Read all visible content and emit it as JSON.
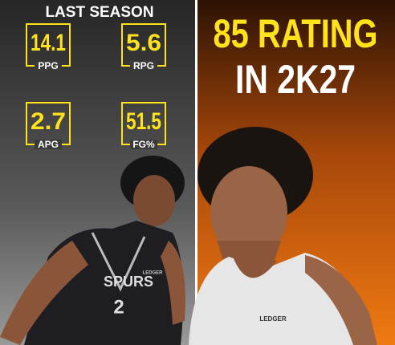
{
  "left_panel": {
    "title": "LAST SEASON",
    "stats": [
      {
        "value": "14.1",
        "label": "PPG"
      },
      {
        "value": "5.6",
        "label": "RPG"
      },
      {
        "value": "2.7",
        "label": "APG"
      },
      {
        "value": "51.5",
        "label": "FG%"
      }
    ],
    "jersey": {
      "team": "SPURS",
      "number": "2",
      "sponsor": "LEDGER"
    }
  },
  "right_panel": {
    "headline": [
      "85 RATING",
      "IN 2K27"
    ],
    "jersey": {
      "sponsor": "LEDGER"
    }
  }
}
